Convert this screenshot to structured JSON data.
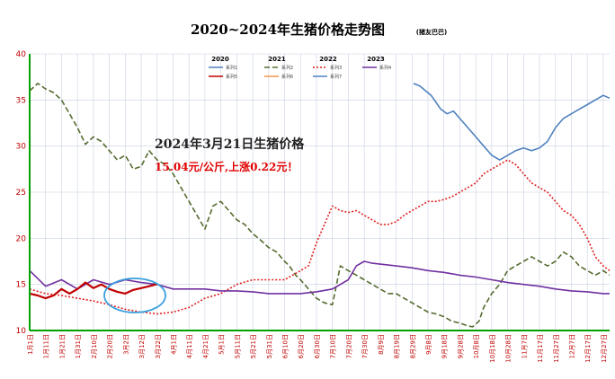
{
  "chart_data": {
    "type": "line",
    "title": "2020~2024年生猪价格走势图",
    "credit": "(猪友巴巴)",
    "xlabel": "",
    "ylabel": "",
    "ylim": [
      10,
      40
    ],
    "yticks": [
      10,
      15,
      20,
      25,
      30,
      35,
      40
    ],
    "grid": true,
    "legend_position": "top",
    "x_tick_labels": [
      "1月1日",
      "1月11日",
      "1月21日",
      "1月31日",
      "2月10日",
      "2月20日",
      "3月2日",
      "3月12日",
      "3月22日",
      "4月1日",
      "4月11日",
      "4月21日",
      "5月1日",
      "5月11日",
      "5月21日",
      "5月31日",
      "6月10日",
      "6月20日",
      "6月30日",
      "7月10日",
      "7月20日",
      "7月30日",
      "8月9日",
      "8月19日",
      "8月29日",
      "9月8日",
      "9月18日",
      "9月28日",
      "10月8日",
      "10月18日",
      "10月28日",
      "11月7日",
      "11月17日",
      "11月27日",
      "12月7日",
      "12月17日",
      "12月27日"
    ],
    "legend_years": [
      "2020",
      "2021",
      "2022",
      "2023"
    ],
    "annotation": {
      "line1": "2024年3月21日生猪价格",
      "line2": "15.04元/公斤,上涨0.22元！"
    },
    "series": [
      {
        "name": "系列1",
        "year": "2020",
        "color": "#4f81bd",
        "dash": "solid",
        "x": [
          241,
          245,
          252,
          258,
          262,
          266,
          270,
          275,
          280,
          285,
          290,
          295,
          300,
          305,
          310,
          315,
          320,
          325,
          330,
          335,
          340,
          345,
          350,
          355,
          360,
          364
        ],
        "y": [
          36.8,
          36.5,
          35.5,
          34.0,
          33.5,
          33.8,
          33.0,
          32.0,
          31.0,
          30.0,
          29.0,
          28.5,
          29.0,
          29.5,
          29.8,
          29.5,
          29.8,
          30.5,
          32.0,
          33.0,
          33.5,
          34.0,
          34.5,
          35.0,
          35.5,
          35.2
        ]
      },
      {
        "name": "系列2",
        "year": "2021",
        "color": "#556b2f",
        "dash": "6,3",
        "x": [
          0,
          5,
          10,
          15,
          20,
          25,
          30,
          35,
          40,
          45,
          50,
          55,
          60,
          65,
          70,
          75,
          80,
          85,
          90,
          95,
          100,
          105,
          110,
          115,
          120,
          125,
          130,
          135,
          140,
          145,
          150,
          155,
          160,
          163,
          165,
          167,
          170,
          175,
          180,
          185,
          190,
          195,
          200,
          205,
          210,
          215,
          220,
          225,
          230,
          235,
          240,
          245,
          250,
          255,
          260,
          265,
          270,
          275,
          278,
          282,
          285,
          290,
          295,
          300,
          305,
          310,
          315,
          320,
          325,
          330,
          335,
          340,
          345,
          350,
          355,
          360,
          364
        ],
        "y": [
          36.0,
          36.8,
          36.2,
          35.8,
          35.0,
          33.5,
          32.0,
          30.2,
          31.0,
          30.5,
          29.5,
          28.5,
          29.0,
          27.5,
          27.8,
          29.5,
          28.5,
          28.0,
          27.0,
          25.5,
          24.0,
          22.5,
          21.0,
          23.5,
          24.0,
          23.0,
          22.0,
          21.5,
          20.5,
          19.8,
          19.0,
          18.5,
          17.5,
          17.0,
          16.5,
          16.0,
          15.5,
          14.5,
          13.5,
          13.0,
          12.8,
          17.0,
          16.5,
          16.0,
          15.5,
          15.0,
          14.5,
          14.0,
          14.0,
          13.5,
          13.0,
          12.5,
          12.0,
          11.8,
          11.5,
          11.0,
          10.8,
          10.5,
          10.4,
          11.0,
          12.5,
          14.0,
          15.0,
          16.5,
          17.0,
          17.5,
          18.0,
          17.5,
          17.0,
          17.5,
          18.5,
          18.0,
          17.0,
          16.5,
          16.0,
          16.5,
          16.0
        ]
      },
      {
        "name": "系列3",
        "year": "2022",
        "color": "#e02020",
        "dash": "2,2",
        "x": [
          0,
          10,
          20,
          30,
          40,
          50,
          60,
          70,
          80,
          90,
          100,
          110,
          120,
          130,
          140,
          150,
          160,
          165,
          170,
          175,
          180,
          185,
          190,
          195,
          200,
          205,
          210,
          215,
          220,
          225,
          230,
          235,
          240,
          245,
          250,
          255,
          260,
          265,
          270,
          275,
          280,
          285,
          290,
          295,
          300,
          305,
          310,
          315,
          320,
          325,
          330,
          335,
          340,
          345,
          350,
          355,
          360,
          364
        ],
        "y": [
          14.5,
          14.0,
          13.8,
          13.5,
          13.2,
          12.8,
          12.3,
          12.0,
          11.8,
          12.0,
          12.5,
          13.5,
          14.0,
          15.0,
          15.5,
          15.5,
          15.5,
          16.0,
          16.5,
          17.0,
          19.5,
          21.5,
          23.5,
          23.0,
          22.8,
          23.0,
          22.5,
          22.0,
          21.5,
          21.5,
          21.8,
          22.5,
          23.0,
          23.5,
          24.0,
          24.0,
          24.2,
          24.5,
          25.0,
          25.5,
          26.0,
          27.0,
          27.5,
          28.0,
          28.5,
          28.0,
          27.0,
          26.0,
          25.5,
          25.0,
          24.0,
          23.0,
          22.5,
          21.5,
          20.0,
          18.0,
          17.0,
          16.5
        ]
      },
      {
        "name": "系列4",
        "year": "2023",
        "color": "#7030a0",
        "dash": "solid",
        "x": [
          0,
          10,
          20,
          30,
          40,
          50,
          60,
          70,
          80,
          90,
          100,
          110,
          120,
          130,
          140,
          150,
          160,
          170,
          180,
          190,
          200,
          205,
          210,
          215,
          220,
          230,
          240,
          250,
          260,
          270,
          280,
          290,
          300,
          310,
          320,
          330,
          340,
          350,
          360,
          364
        ],
        "y": [
          16.5,
          14.8,
          15.5,
          14.5,
          15.5,
          15.0,
          15.5,
          15.2,
          15.0,
          14.5,
          14.5,
          14.5,
          14.3,
          14.3,
          14.2,
          14.0,
          14.0,
          14.0,
          14.2,
          14.5,
          15.5,
          17.0,
          17.5,
          17.3,
          17.2,
          17.0,
          16.8,
          16.5,
          16.3,
          16.0,
          15.8,
          15.5,
          15.2,
          15.0,
          14.8,
          14.5,
          14.3,
          14.2,
          14.0,
          14.0
        ]
      },
      {
        "name": "系列5",
        "year": "2024",
        "color": "#c00000",
        "dash": "solid",
        "x": [
          0,
          5,
          10,
          15,
          20,
          25,
          30,
          35,
          40,
          45,
          50,
          55,
          60,
          65,
          70,
          75,
          80
        ],
        "y": [
          14.0,
          13.8,
          13.5,
          13.8,
          14.5,
          14.0,
          14.5,
          15.2,
          14.6,
          15.0,
          14.5,
          14.2,
          14.0,
          14.4,
          14.6,
          14.8,
          15.04
        ]
      },
      {
        "name": "系列6",
        "color": "#f79646",
        "dash": "solid",
        "x": [],
        "y": []
      },
      {
        "name": "系列7",
        "color": "#4f81bd",
        "dash": "solid",
        "x": [],
        "y": []
      }
    ]
  },
  "colors": {
    "axis": "#00a000",
    "grid": "#c8d0e0",
    "tick": "#c00000",
    "highlight_ellipse": "#3aa0dd"
  }
}
